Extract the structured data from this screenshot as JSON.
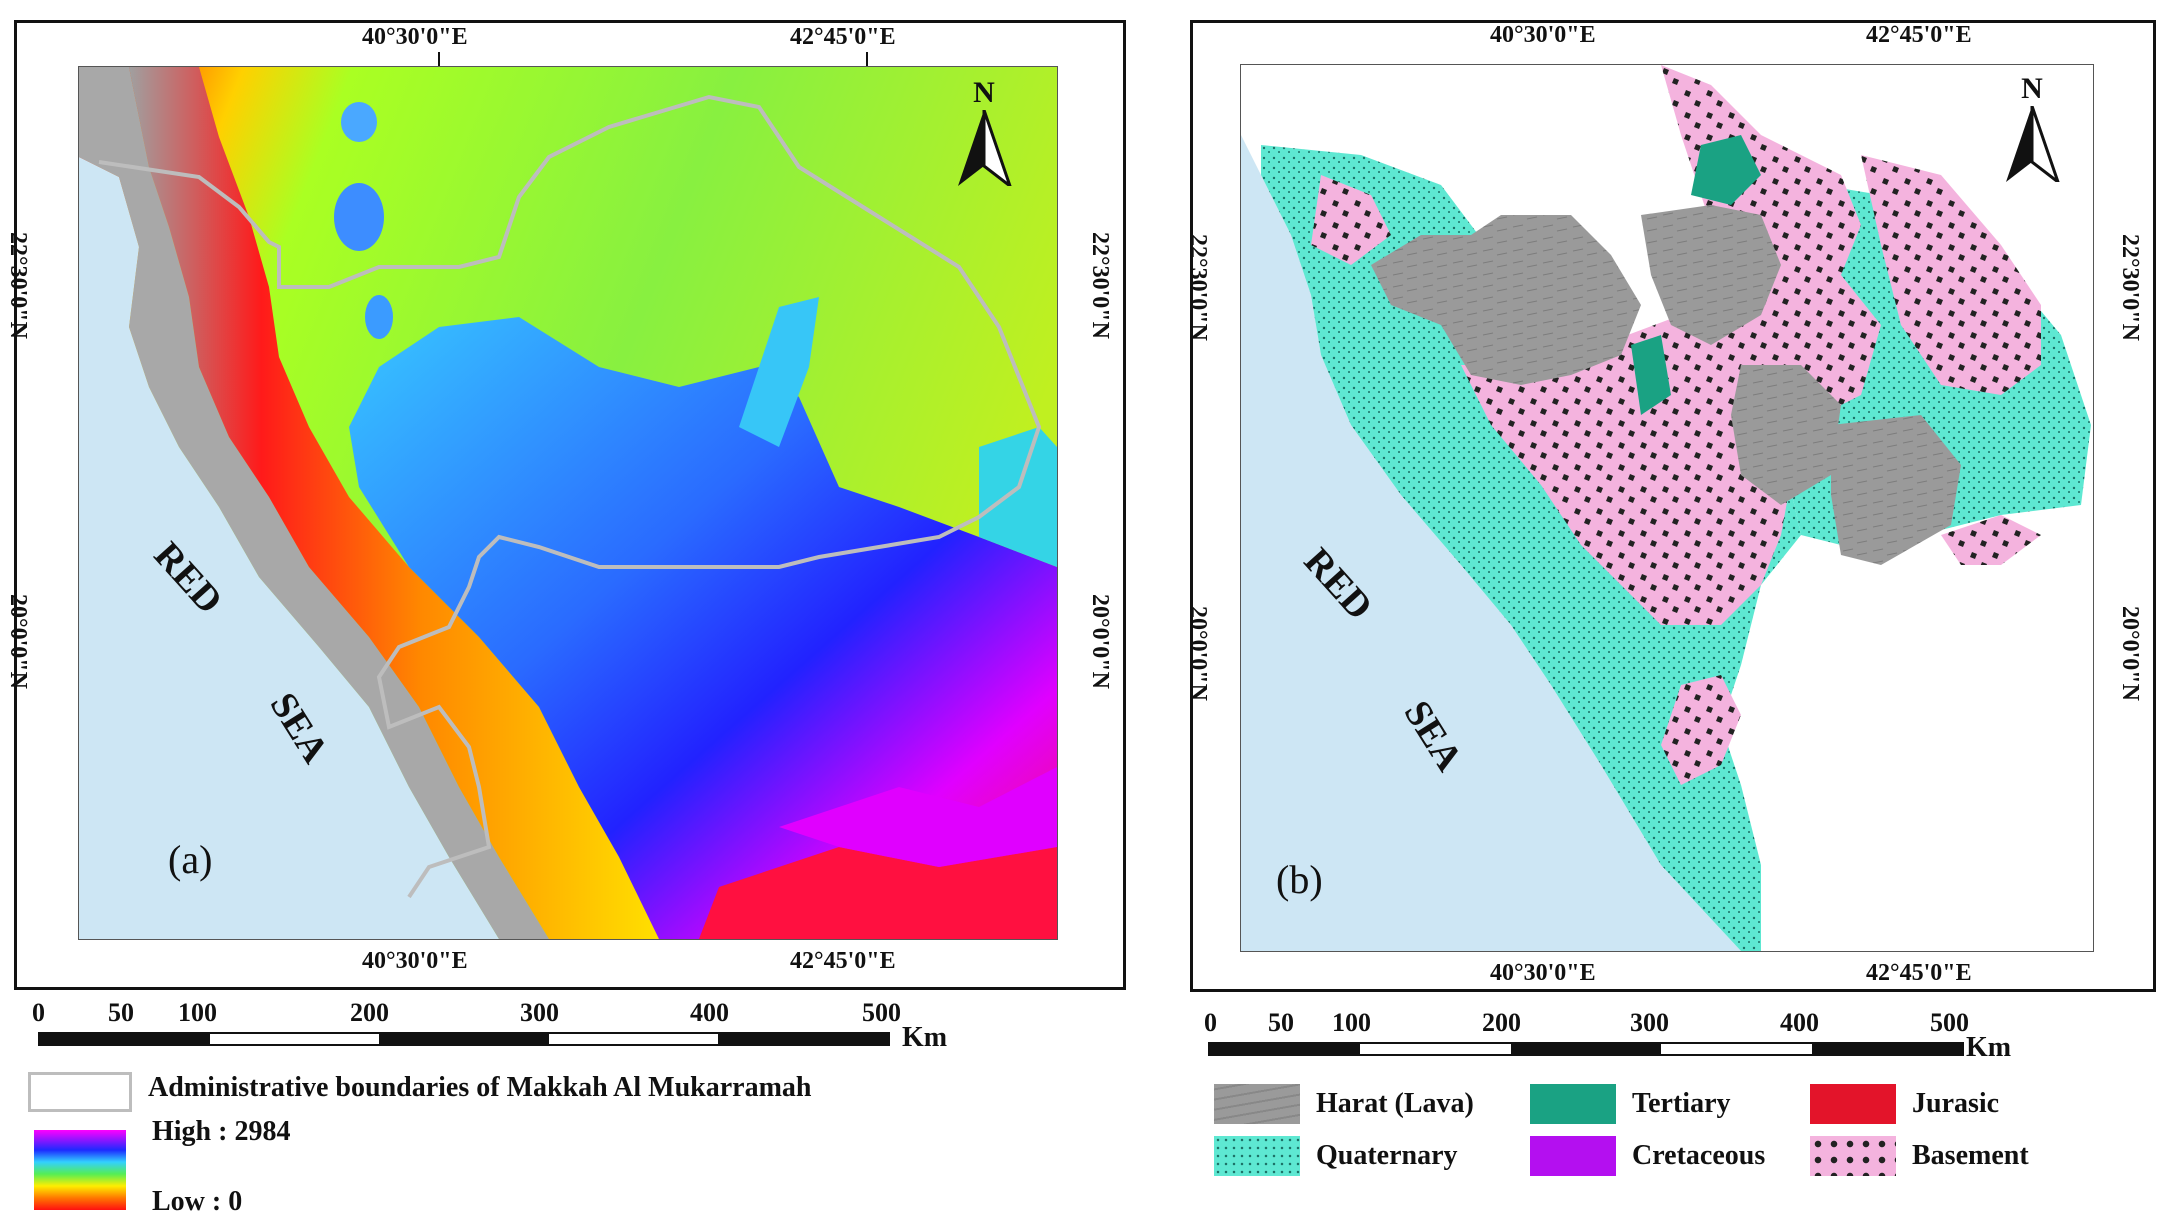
{
  "panel_a": {
    "coord_top_left": "40°30'0\"E",
    "coord_top_right": "42°45'0\"E",
    "coord_bottom_left": "40°30'0\"E",
    "coord_bottom_right": "42°45'0\"E",
    "coord_left_upper": "22°30'0\"N",
    "coord_left_lower": "20°0'0\"N",
    "coord_right_upper": "22°30'0\"N",
    "coord_right_lower": "20°0'0\"N",
    "sea_label_1": "RED",
    "sea_label_2": "SEA",
    "panel_letter": "(a)",
    "north_label": "N",
    "scale_labels": [
      "0",
      "50",
      "100",
      "200",
      "300",
      "400",
      "500"
    ],
    "scale_unit": "Km",
    "legend_boundary": "Administrative boundaries of Makkah Al Mukarramah",
    "legend_high": "High : 2984",
    "legend_low": "Low : 0"
  },
  "panel_b": {
    "coord_top_left": "40°30'0\"E",
    "coord_top_right": "42°45'0\"E",
    "coord_bottom_left": "40°30'0\"E",
    "coord_bottom_right": "42°45'0\"E",
    "coord_left_upper": "22°30'0\"N",
    "coord_left_lower": "20°0'0\"N",
    "coord_right_upper": "22°30'0\"N",
    "coord_right_lower": "20°0'0\"N",
    "sea_label_1": "RED",
    "sea_label_2": "SEA",
    "panel_letter": "(b)",
    "north_label": "N",
    "scale_labels": [
      "0",
      "50",
      "100",
      "200",
      "300",
      "400",
      "500"
    ],
    "scale_unit": "Km",
    "legend": [
      {
        "label": "Harat (Lava)",
        "color": "#9a9a9a"
      },
      {
        "label": "Tertiary",
        "color": "#1aa283"
      },
      {
        "label": "Jurasic",
        "color": "#e3142a"
      },
      {
        "label": "Quaternary",
        "color": "#5ee8d2"
      },
      {
        "label": "Cretaceous",
        "color": "#b40ff0"
      },
      {
        "label": "Basement",
        "color": "#f4b3de"
      }
    ]
  },
  "colors": {
    "sea": "#cde6f4",
    "boundary": "#bdbdbd",
    "lava": "#9a9a9a",
    "basement": "#f4b3de",
    "quaternary": "#5ee8d2",
    "tertiary": "#1aa283"
  }
}
